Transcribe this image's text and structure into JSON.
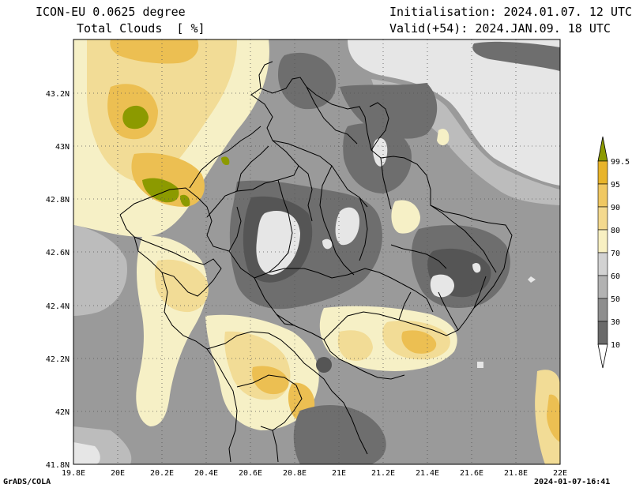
{
  "header": {
    "model": "ICON-EU 0.0625 degree",
    "field": "Total Clouds  [ %]",
    "init": "Initialisation: 2024.01.07. 12 UTC",
    "valid": "Valid(+54): 2024.JAN.09. 18 UTC"
  },
  "axes": {
    "lon_ticks": [
      "19.8E",
      "20E",
      "20.2E",
      "20.4E",
      "20.6E",
      "20.8E",
      "21E",
      "21.2E",
      "21.4E",
      "21.6E",
      "21.8E",
      "22E"
    ],
    "lat_ticks": [
      "43.2N",
      "43N",
      "42.8N",
      "42.6N",
      "42.4N",
      "42.2N",
      "42N",
      "41.8N"
    ],
    "lon_range": [
      19.8,
      22.0
    ],
    "lat_range": [
      41.8,
      43.4
    ],
    "grid": "dotted"
  },
  "colorbar": {
    "labels": [
      "99.5",
      "95",
      "90",
      "80",
      "70",
      "60",
      "50",
      "30",
      "10"
    ],
    "colors": [
      "#8c9a00",
      "#e8b42a",
      "#f0c862",
      "#f4d98e",
      "#f8f0c2",
      "#d2d2d2",
      "#b2b2b2",
      "#8e8e8e",
      "#6a6a6a",
      "#4e4e4e",
      "#ffffff"
    ]
  },
  "footer": {
    "left": "GrADS/COLA",
    "right": "2024-01-07-16:41"
  },
  "palette": {
    "bg_gray": "#9a9a9a",
    "light_gray": "#e6e6e6",
    "mid_gray": "#bcbcbc",
    "dark_gray": "#6e6e6e",
    "darker_gray": "#555555",
    "cream": "#f6f0c6",
    "pale_yellow": "#f2dc96",
    "orange": "#ecbf52",
    "deep_orange": "#e6a81e",
    "olive": "#8c9a00",
    "border": "#000000"
  }
}
